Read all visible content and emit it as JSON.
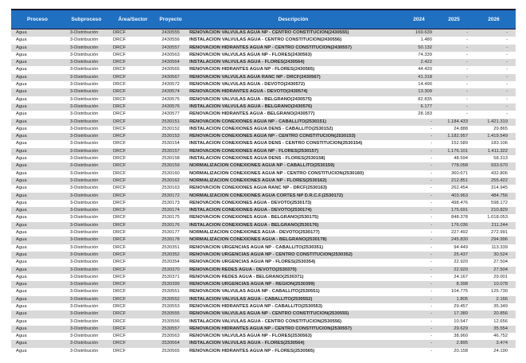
{
  "colors": {
    "header_bg": "#1F70C1",
    "header_text": "#FFFFFF",
    "row_alt": "#D9D9D9",
    "row_base": "#FFFFFF",
    "frame_border": "#16162A"
  },
  "table": {
    "columns": [
      {
        "key": "proceso",
        "label": "Proceso"
      },
      {
        "key": "subproceso",
        "label": "Subproceso"
      },
      {
        "key": "area_sector",
        "label": "Área/Sector"
      },
      {
        "key": "proyecto",
        "label": "Proyecto"
      },
      {
        "key": "descripcion",
        "label": "Descripción"
      },
      {
        "key": "y2024",
        "label": "2024"
      },
      {
        "key": "y2025",
        "label": "2025"
      },
      {
        "key": "y2026",
        "label": "2026"
      }
    ],
    "rows": [
      [
        "Agua",
        "3-Distribución",
        "DRCF",
        "2430555",
        "RENOVACION VALVULAS AGUA NP - CENTRO CONSTITUCION(2430555)",
        "169.639",
        "-",
        "-"
      ],
      [
        "Agua",
        "3-Distribución",
        "DRCF",
        "2430556",
        "INSTALACION VALVULAS AGUA - CENTRO CONSTITUCION(2430556)",
        "1.480",
        "-",
        "-"
      ],
      [
        "Agua",
        "3-Distribución",
        "DRCF",
        "2430557",
        "RENOVACION HIDRANTES AGUA NP - CENTRO CONSTITUCION(2430557)",
        "50.132",
        "-",
        "-"
      ],
      [
        "Agua",
        "3-Distribución",
        "DRCF",
        "2430563",
        "RENOVACION VALVULAS AGUA NP - FLORES(2430563)",
        "74.339",
        "-",
        "-"
      ],
      [
        "Agua",
        "3-Distribución",
        "DRCF",
        "2430564",
        "INSTALACION VALVULAS AGUA - FLORES(2430564)",
        "2.422",
        "-",
        "-"
      ],
      [
        "Agua",
        "3-Distribución",
        "DRCF",
        "2430565",
        "RENOVACION HIDRANTES AGUA NP - FLORES(2430565)",
        "44.420",
        "-",
        "-"
      ],
      [
        "Agua",
        "3-Distribución",
        "DRCF",
        "2430567",
        "RENOVACION VALVULAS AGUA RANC NP - DRCF(2430567)",
        "41.318",
        "-",
        "-"
      ],
      [
        "Agua",
        "3-Distribución",
        "DRCF",
        "2430572",
        "RENOVACION VALVULAS AGUA - DEVOTO(2430572)",
        "14.490",
        "-",
        "-"
      ],
      [
        "Agua",
        "3-Distribución",
        "DRCF",
        "2430574",
        "RENOVACION HIDRANTES AGUA - DEVOTO(2430574)",
        "13.309",
        "-",
        "-"
      ],
      [
        "Agua",
        "3-Distribución",
        "DRCF",
        "2430575",
        "RENOVACION VALVULAS AGUA - BELGRANO(2430575)",
        "82.835",
        "-",
        "-"
      ],
      [
        "Agua",
        "3-Distribución",
        "DRCF",
        "2430576",
        "INSTALACION VALVULAS AGUA - BELGRANO(2430576)",
        "6.177",
        "-",
        "-"
      ],
      [
        "Agua",
        "3-Distribución",
        "DRCF",
        "2430577",
        "RENOVACION HIDRANTES AGUA - BELGRANO(2430577)",
        "28.183",
        "-",
        "-"
      ],
      [
        "Agua",
        "3-Distribución",
        "DRCF",
        "2530151",
        "RENOVACION CONEXIONES AGUA NP - CABALLITO(2530151)",
        "-",
        "1.184.433",
        "1.421.319"
      ],
      [
        "Agua",
        "3-Distribución",
        "DRCF",
        "2530152",
        "INSTALACION CONEXIONES AGUA DENS - CABALLITO(2530152)",
        "-",
        "24.888",
        "29.865"
      ],
      [
        "Agua",
        "3-Distribución",
        "DRCF",
        "2530153",
        "RENOVACION CONEXIONES AGUA NP - CENTRO CONSTITUCION(2530153)",
        "-",
        "1.182.957",
        "1.419.549"
      ],
      [
        "Agua",
        "3-Distribución",
        "DRCF",
        "2530154",
        "INSTALACION CONEXIONES AGUA DENS - CENTRO CONSTITUCION(2530154)",
        "-",
        "152.589",
        "183.106"
      ],
      [
        "Agua",
        "3-Distribución",
        "DRCF",
        "2530157",
        "RENOVACION CONEXIONES AGUA NP - FLORES(2530157)",
        "-",
        "1.176.101",
        "1.411.322"
      ],
      [
        "Agua",
        "3-Distribución",
        "DRCF",
        "2530158",
        "INSTALACION CONEXIONES AGUA DENS - FLORES(2530158)",
        "-",
        "48.594",
        "58.313"
      ],
      [
        "Agua",
        "3-Distribución",
        "DRCF",
        "2530159",
        "NORMALIZACION CONEXIONES AGUA NP - CABALLITO(2530159)",
        "-",
        "778.058",
        "933.670"
      ],
      [
        "Agua",
        "3-Distribución",
        "DRCF",
        "2530160",
        "NORMALIZACION CONEXIONES AGUA NP - CENTRO CONSTITUCION(2530160)",
        "-",
        "360.671",
        "432.806"
      ],
      [
        "Agua",
        "3-Distribución",
        "DRCF",
        "2530162",
        "NORMALIZACION CONEXIONES AGUA NP - FLORES(2530162)",
        "-",
        "212.851",
        "255.422"
      ],
      [
        "Agua",
        "3-Distribución",
        "DRCF",
        "2530163",
        "RENOVACION CONEXIONES AGUA RANC NP - DRCF(2530163)",
        "-",
        "262.454",
        "314.945"
      ],
      [
        "Agua",
        "3-Distribución",
        "DRCF",
        "2530172",
        "NORMALIZACION CONEXIONES AGUA CORTES NP D.R.C.F.(2530172)",
        "-",
        "403.963",
        "484.756"
      ],
      [
        "Agua",
        "3-Distribución",
        "DRCF",
        "2530173",
        "RENOVACION CONEXIONES AGUA - DEVOTO(2530173)",
        "-",
        "498.476",
        "598.172"
      ],
      [
        "Agua",
        "3-Distribución",
        "DRCF",
        "2530174",
        "INSTALACION CONEXIONES AGUA - DEVOTO(2530174)",
        "-",
        "175.691",
        "210.829"
      ],
      [
        "Agua",
        "3-Distribución",
        "DRCF",
        "2530175",
        "RENOVACION CONEXIONES AGUA - BELGRANO(2530175)",
        "-",
        "848.378",
        "1.018.053"
      ],
      [
        "Agua",
        "3-Distribución",
        "DRCF",
        "2530176",
        "INSTALACION CONEXIONES AGUA - BELGRANO(2530176)",
        "-",
        "176.036",
        "211.244"
      ],
      [
        "Agua",
        "3-Distribución",
        "DRCF",
        "2530177",
        "NORMALIZACION CONEXIONES AGUA - DEVOTO(2530177)",
        "-",
        "227.492",
        "272.991"
      ],
      [
        "Agua",
        "3-Distribución",
        "DRCF",
        "2530178",
        "NORMALIZACION CONEXIONES AGUA - BELGRANO(2530178)",
        "-",
        "245.830",
        "294.996"
      ],
      [
        "Agua",
        "3-Distribución",
        "DRCF",
        "2530351",
        "RENOVACION URGENCIAS AGUA NP - CABALLITO(2530351)",
        "-",
        "94.449",
        "113.339"
      ],
      [
        "Agua",
        "3-Distribución",
        "DRCF",
        "2530352",
        "RENOVACION URGENCIAS AGUA NP - CENTRO CONSTITUCION(2530352)",
        "-",
        "25.437",
        "30.524"
      ],
      [
        "Agua",
        "3-Distribución",
        "DRCF",
        "2530354",
        "RENOVACION URGENCIAS AGUA NP - FLORES(2530354)",
        "-",
        "22.920",
        "27.504"
      ],
      [
        "Agua",
        "3-Distribución",
        "DRCF",
        "2530370",
        "RENOVACION REDES AGUA - DEVOTO(2530370)",
        "-",
        "22.920",
        "27.504"
      ],
      [
        "Agua",
        "3-Distribución",
        "DRCF",
        "2530371",
        "RENOVACION REDES AGUA - BELGRANO(2530371)",
        "-",
        "24.167",
        "29.001"
      ],
      [
        "Agua",
        "3-Distribución",
        "DRCF",
        "2530399",
        "RENOVACION URGENCIAS AGUA NP - REGION(2530399)",
        "-",
        "8.398",
        "10.078"
      ],
      [
        "Agua",
        "3-Distribución",
        "DRCF",
        "2530551",
        "RENOVACION VALVULAS AGUA NP - CABALLITO(2530551)",
        "-",
        "104.775",
        "125.730"
      ],
      [
        "Agua",
        "3-Distribución",
        "DRCF",
        "2530552",
        "INSTALACION VALVULAS AGUA - CABALLITO(2530552)",
        "-",
        "1.805",
        "2.166"
      ],
      [
        "Agua",
        "3-Distribución",
        "DRCF",
        "2530553",
        "RENOVACION HIDRANTES AGUA NP - CABALLITO(2530553)",
        "-",
        "29.457",
        "35.349"
      ],
      [
        "Agua",
        "3-Distribución",
        "DRCF",
        "2530555",
        "RENOVACION VALVULAS AGUA NP - CENTRO CONSTITUCION(2530555)",
        "-",
        "17.380",
        "20.856"
      ],
      [
        "Agua",
        "3-Distribución",
        "DRCF",
        "2530556",
        "INSTALACION VALVULAS AGUA - CENTRO CONSTITUCION(2530556)",
        "-",
        "10.547",
        "12.656"
      ],
      [
        "Agua",
        "3-Distribución",
        "DRCF",
        "2530557",
        "RENOVACION HIDRANTES AGUA NP - CENTRO CONSTITUCION(2530557)",
        "-",
        "29.629",
        "35.554"
      ],
      [
        "Agua",
        "3-Distribución",
        "DRCF",
        "2530563",
        "RENOVACION VALVULAS AGUA NP - FLORES(2530563)",
        "-",
        "38.960",
        "46.752"
      ],
      [
        "Agua",
        "3-Distribución",
        "DRCF",
        "2530564",
        "INSTALACION VALVULAS AGUA - FLORES(2530564)",
        "-",
        "2.895",
        "3.474"
      ],
      [
        "Agua",
        "3-Distribución",
        "DRCF",
        "2530565",
        "RENOVACION HIDRANTES AGUA NP - FLORES(2530565)",
        "-",
        "20.158",
        "24.190"
      ]
    ]
  }
}
